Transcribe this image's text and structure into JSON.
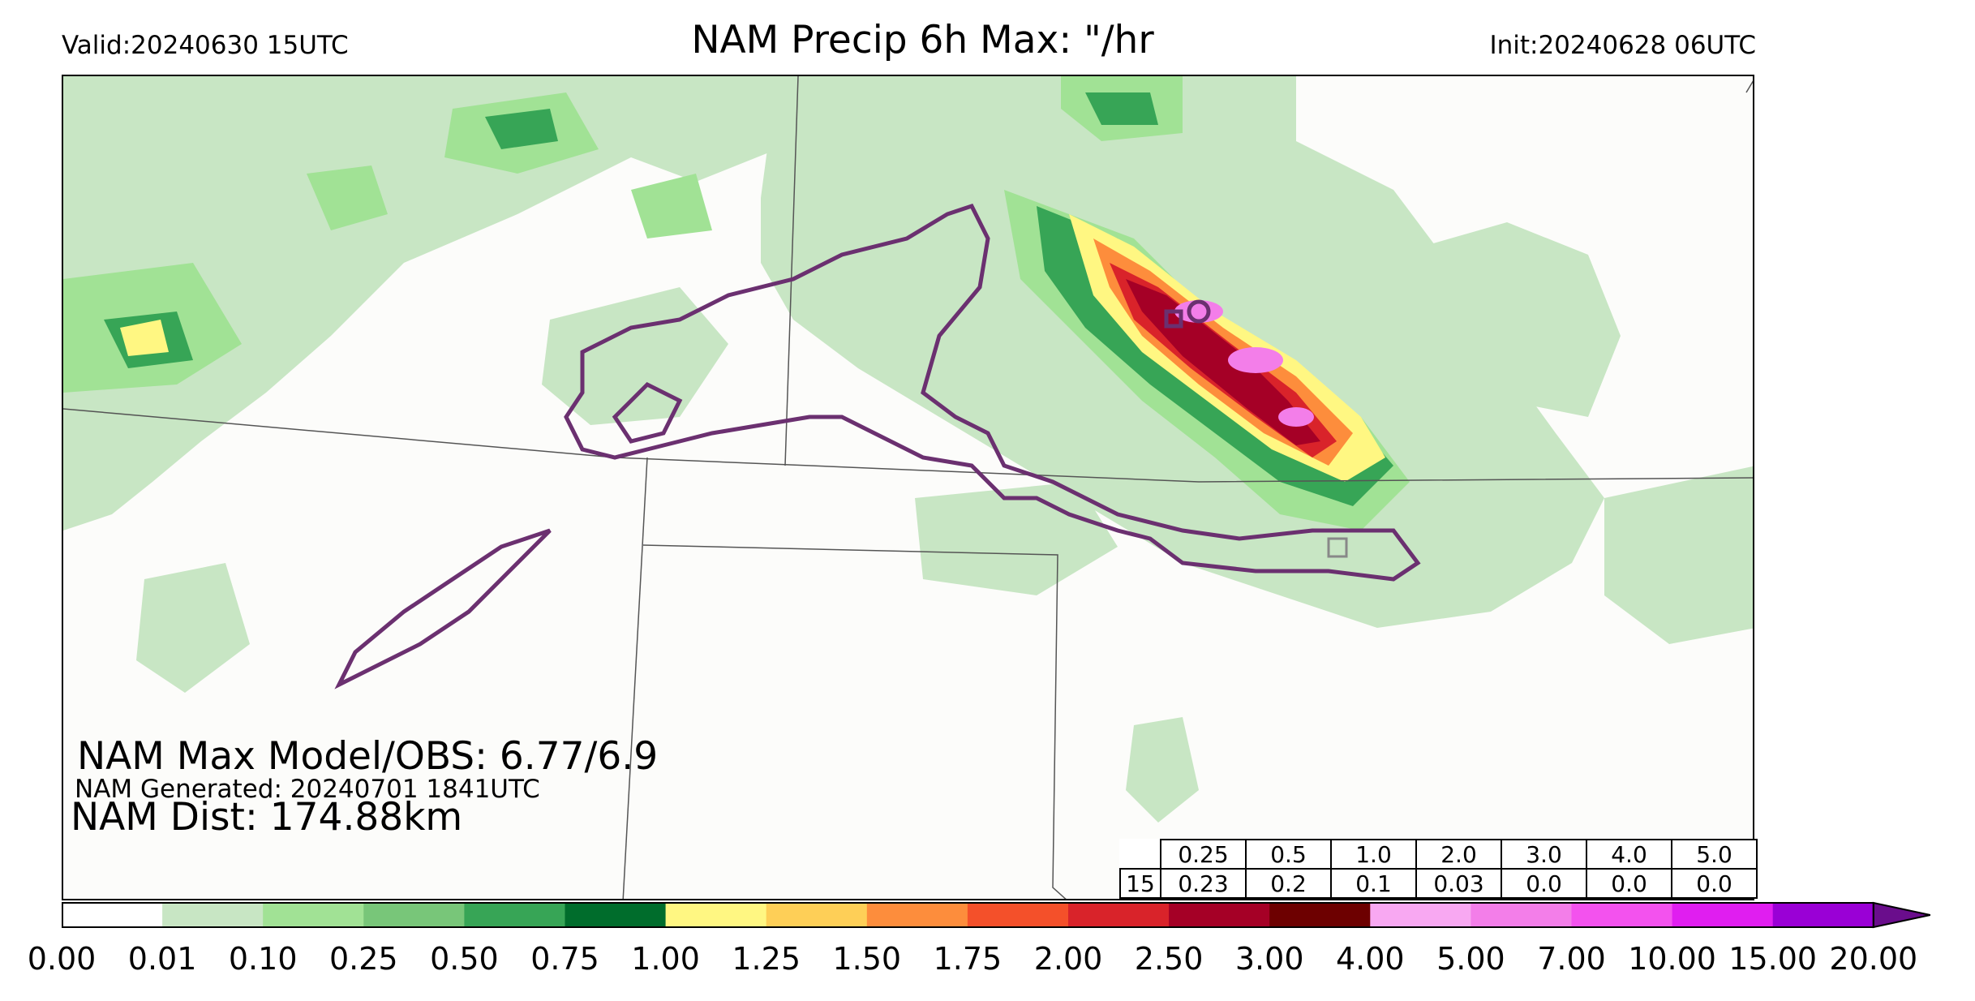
{
  "header": {
    "valid": "Valid:20240630 15UTC",
    "title": "NAM Precip 6h Max: \"/hr",
    "init": "Init:20240628 06UTC"
  },
  "stats": {
    "max_model_obs": "NAM Max Model/OBS: 6.77/6.9",
    "generated": "NAM Generated: 20240701 1841UTC",
    "dist": "NAM Dist: 174.88km"
  },
  "threshold_table": {
    "thresholds": [
      "0.25",
      "0.5",
      "1.0",
      "2.0",
      "3.0",
      "4.0",
      "5.0"
    ],
    "row_label": "15",
    "values": [
      "0.23",
      "0.2",
      "0.1",
      "0.03",
      "0.0",
      "0.0",
      "0.0"
    ]
  },
  "colorbar": {
    "ticks": [
      "0.00",
      "0.01",
      "0.10",
      "0.25",
      "0.50",
      "0.75",
      "1.00",
      "1.25",
      "1.50",
      "1.75",
      "2.00",
      "2.50",
      "3.00",
      "4.00",
      "5.00",
      "7.00",
      "10.00",
      "15.00",
      "20.00"
    ],
    "colors": [
      "#ffffff",
      "#c8e6c4",
      "#a1e295",
      "#78c679",
      "#37a556",
      "#006d2c",
      "#fff782",
      "#fecf57",
      "#fd8d3c",
      "#f4502a",
      "#d9232a",
      "#a50026",
      "#6d0000",
      "#f8a8f2",
      "#f37ee9",
      "#f352ee",
      "#e01ef0",
      "#9a00d6",
      "#6a0d8c"
    ]
  },
  "map_colors": {
    "light_green": "#c8e6c4",
    "green": "#a1e295",
    "mid_green": "#78c679",
    "dark_green": "#37a556",
    "deep_green": "#006d2c",
    "yellow": "#fff782",
    "orange": "#fd8d3c",
    "red": "#d9232a",
    "maroon": "#a50026",
    "pink": "#f37ee9",
    "obs_contour": "#6b3070",
    "state_line": "#555555"
  }
}
